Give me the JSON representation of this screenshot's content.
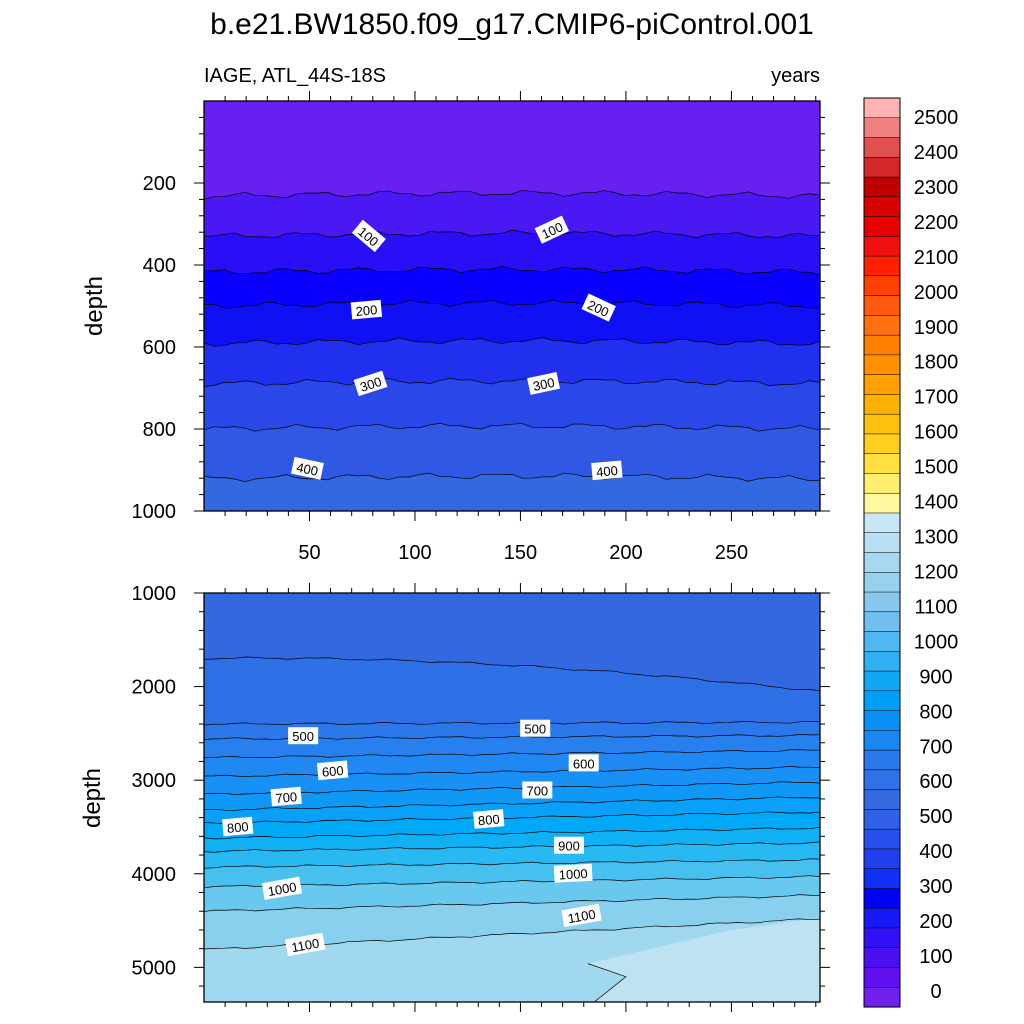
{
  "chart_data": [
    {
      "type": "contour",
      "panel": "upper",
      "title": "b.e21.BW1850.f09_g17.CMIP6-piControl.001",
      "left_label": "IAGE, ATL_44S-18S",
      "right_label": "years",
      "xlabel": "",
      "ylabel": "depth",
      "xlim": [
        0,
        292
      ],
      "ylim": [
        1000,
        0
      ],
      "x_ticks": [
        50,
        100,
        150,
        200,
        250
      ],
      "y_ticks": [
        200,
        400,
        600,
        800,
        1000
      ],
      "contour_lines": [
        {
          "value": 50,
          "depth": 232
        },
        {
          "value": 100,
          "depth": 330
        },
        {
          "value": 150,
          "depth": 418
        },
        {
          "value": 200,
          "depth": 500
        },
        {
          "value": 250,
          "depth": 592
        },
        {
          "value": 300,
          "depth": 690
        },
        {
          "value": 350,
          "depth": 800
        },
        {
          "value": 400,
          "depth": 922
        }
      ],
      "contour_labels": [
        {
          "text": "100",
          "x": 78,
          "depth": 330,
          "rotate": 40
        },
        {
          "text": "100",
          "x": 165,
          "depth": 315,
          "rotate": -25
        },
        {
          "text": "200",
          "x": 77,
          "depth": 510,
          "rotate": -5
        },
        {
          "text": "200",
          "x": 187,
          "depth": 505,
          "rotate": 25
        },
        {
          "text": "300",
          "x": 79,
          "depth": 690,
          "rotate": -18
        },
        {
          "text": "300",
          "x": 161,
          "depth": 690,
          "rotate": -12
        },
        {
          "text": "400",
          "x": 49,
          "depth": 897,
          "rotate": 12
        },
        {
          "text": "400",
          "x": 191,
          "depth": 902,
          "rotate": -5
        }
      ]
    },
    {
      "type": "contour",
      "panel": "lower",
      "xlabel": "",
      "ylabel": "depth",
      "xlim": [
        0,
        292
      ],
      "ylim": [
        5370,
        1000
      ],
      "y_ticks": [
        1000,
        2000,
        3000,
        4000,
        5000
      ],
      "contour_lines": [
        {
          "value": 450,
          "left": 1700,
          "right": 2050
        },
        {
          "value": 500,
          "left": 2400,
          "right": 2380
        },
        {
          "value": 550,
          "left": 2560,
          "right": 2520
        },
        {
          "value": 600,
          "left": 2760,
          "right": 2680
        },
        {
          "value": 650,
          "left": 2960,
          "right": 2860
        },
        {
          "value": 700,
          "left": 3150,
          "right": 3020
        },
        {
          "value": 750,
          "left": 3320,
          "right": 3180
        },
        {
          "value": 800,
          "left": 3460,
          "right": 3340
        },
        {
          "value": 850,
          "left": 3620,
          "right": 3510
        },
        {
          "value": 900,
          "left": 3760,
          "right": 3670
        },
        {
          "value": 950,
          "left": 3930,
          "right": 3850
        },
        {
          "value": 1000,
          "left": 4140,
          "right": 4030
        },
        {
          "value": 1050,
          "left": 4400,
          "right": 4230
        },
        {
          "value": 1100,
          "left": 4810,
          "right": 4480
        }
      ],
      "contour_labels": [
        {
          "text": "500",
          "x": 47,
          "depth": 2530,
          "rotate": 0
        },
        {
          "text": "500",
          "x": 157,
          "depth": 2450,
          "rotate": 0
        },
        {
          "text": "600",
          "x": 61,
          "depth": 2900,
          "rotate": -5
        },
        {
          "text": "600",
          "x": 180,
          "depth": 2820,
          "rotate": 0
        },
        {
          "text": "700",
          "x": 39,
          "depth": 3180,
          "rotate": -5
        },
        {
          "text": "700",
          "x": 158,
          "depth": 3110,
          "rotate": 0
        },
        {
          "text": "800",
          "x": 16,
          "depth": 3500,
          "rotate": -5
        },
        {
          "text": "800",
          "x": 135,
          "depth": 3420,
          "rotate": -5
        },
        {
          "text": "900",
          "x": 173,
          "depth": 3700,
          "rotate": 0
        },
        {
          "text": "1000",
          "x": 37,
          "depth": 4160,
          "rotate": -10
        },
        {
          "text": "1000",
          "x": 175,
          "depth": 4000,
          "rotate": -3
        },
        {
          "text": "1100",
          "x": 48,
          "depth": 4760,
          "rotate": -10
        },
        {
          "text": "1100",
          "x": 179,
          "depth": 4450,
          "rotate": -10
        }
      ]
    }
  ],
  "colorbar": {
    "labels": [
      "2500",
      "2400",
      "2300",
      "2200",
      "2100",
      "2000",
      "1900",
      "1800",
      "1700",
      "1600",
      "1500",
      "1400",
      "1300",
      "1200",
      "1100",
      "1000",
      "900",
      "800",
      "700",
      "600",
      "500",
      "400",
      "300",
      "200",
      "100",
      "0"
    ],
    "colors": [
      "#ffb3b3",
      "#f08080",
      "#e05050",
      "#d32828",
      "#c00000",
      "#d80000",
      "#e80000",
      "#f01010",
      "#ff2000",
      "#ff4000",
      "#ff5a10",
      "#ff7010",
      "#ff8000",
      "#ff9000",
      "#ffa000",
      "#ffb000",
      "#ffc010",
      "#ffd020",
      "#ffe040",
      "#ffee70",
      "#fff8a0",
      "#c8e6f5",
      "#b8e0f2",
      "#a8d8ef",
      "#98d0ed",
      "#88c8ec",
      "#70bfee",
      "#50b8f0",
      "#30b0f2",
      "#10a8f5",
      "#00a0f8",
      "#0890f5",
      "#1888f0",
      "#2878ec",
      "#3070e8",
      "#3868e0",
      "#3060e8",
      "#2850ec",
      "#2040f0",
      "#1030f5",
      "#0000ff",
      "#1818f8",
      "#3010f5",
      "#4a10f0",
      "#6010f0",
      "#7020ec"
    ]
  }
}
